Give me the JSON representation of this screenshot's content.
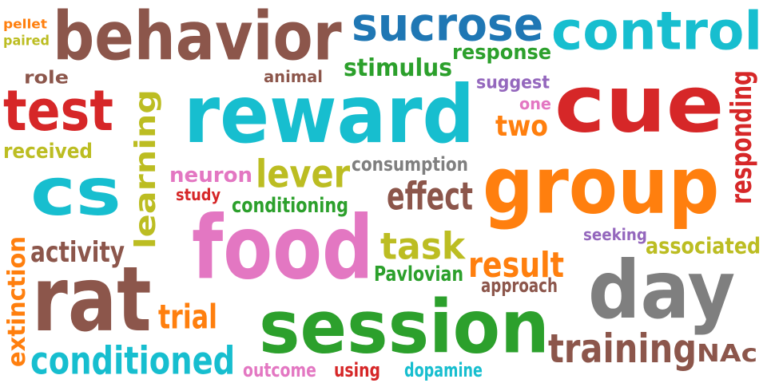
{
  "palette": {
    "brown": "#8c564b",
    "blue": "#1f77b4",
    "cyan": "#17becf",
    "orange": "#ff7f0e",
    "red": "#d62728",
    "green": "#2ca02c",
    "olive": "#bcbd22",
    "pink": "#e377c2",
    "purple": "#9467bd",
    "gray": "#7f7f7f"
  },
  "words": [
    {
      "text": "pellet",
      "color": "orange"
    },
    {
      "text": "paired",
      "color": "olive"
    },
    {
      "text": "behavior",
      "color": "brown"
    },
    {
      "text": "sucrose",
      "color": "blue"
    },
    {
      "text": "control",
      "color": "cyan"
    },
    {
      "text": "response",
      "color": "green"
    },
    {
      "text": "stimulus",
      "color": "green"
    },
    {
      "text": "role",
      "color": "brown"
    },
    {
      "text": "animal",
      "color": "brown"
    },
    {
      "text": "suggest",
      "color": "purple"
    },
    {
      "text": "test",
      "color": "red"
    },
    {
      "text": "reward",
      "color": "cyan"
    },
    {
      "text": "cue",
      "color": "red"
    },
    {
      "text": "one",
      "color": "pink"
    },
    {
      "text": "two",
      "color": "orange"
    },
    {
      "text": "responding",
      "color": "red"
    },
    {
      "text": "learning",
      "color": "olive"
    },
    {
      "text": "received",
      "color": "olive"
    },
    {
      "text": "consumption",
      "color": "gray"
    },
    {
      "text": "cs",
      "color": "cyan"
    },
    {
      "text": "neuron",
      "color": "pink"
    },
    {
      "text": "lever",
      "color": "olive"
    },
    {
      "text": "group",
      "color": "orange"
    },
    {
      "text": "study",
      "color": "red"
    },
    {
      "text": "effect",
      "color": "brown"
    },
    {
      "text": "conditioning",
      "color": "green"
    },
    {
      "text": "food",
      "color": "pink"
    },
    {
      "text": "seeking",
      "color": "purple"
    },
    {
      "text": "associated",
      "color": "olive"
    },
    {
      "text": "activity",
      "color": "brown"
    },
    {
      "text": "task",
      "color": "olive"
    },
    {
      "text": "result",
      "color": "orange"
    },
    {
      "text": "extinction",
      "color": "orange"
    },
    {
      "text": "rat",
      "color": "brown"
    },
    {
      "text": "Pavlovian",
      "color": "green"
    },
    {
      "text": "day",
      "color": "gray"
    },
    {
      "text": "approach",
      "color": "brown"
    },
    {
      "text": "trial",
      "color": "orange"
    },
    {
      "text": "session",
      "color": "green"
    },
    {
      "text": "training",
      "color": "brown"
    },
    {
      "text": "NAc",
      "color": "brown"
    },
    {
      "text": "conditioned",
      "color": "cyan"
    },
    {
      "text": "outcome",
      "color": "pink"
    },
    {
      "text": "using",
      "color": "red"
    },
    {
      "text": "dopamine",
      "color": "cyan"
    }
  ]
}
